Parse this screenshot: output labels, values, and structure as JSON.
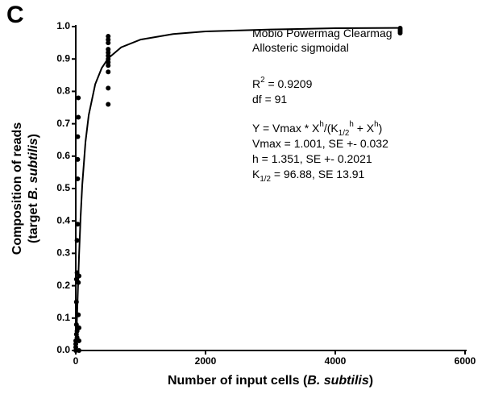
{
  "chart_data": {
    "type": "scatter",
    "panel_label": "C",
    "x_label": [
      {
        "text": "Number of input cells ("
      },
      {
        "text": "B. subtilis",
        "style": "italic"
      },
      {
        "text": ")"
      }
    ],
    "y_label": [
      [
        {
          "text": "Composition of reads"
        }
      ],
      [
        {
          "text": "(target "
        },
        {
          "text": "B. subtilis",
          "style": "italic"
        },
        {
          "text": ")"
        }
      ]
    ],
    "x": [
      0,
      0,
      0,
      0,
      10,
      10,
      10,
      10,
      20,
      20,
      20,
      20,
      30,
      30,
      30,
      30,
      40,
      40,
      40,
      40,
      50,
      50,
      50,
      50,
      500,
      500,
      500,
      500,
      500,
      500,
      500,
      500,
      500,
      500,
      500,
      500,
      5000,
      5000,
      5000,
      5000
    ],
    "values": [
      0,
      0.01,
      0.02,
      0.03,
      0.05,
      0.08,
      0.15,
      0.22,
      0.04,
      0.06,
      0.24,
      0.34,
      0.39,
      0.53,
      0.59,
      0.66,
      0.72,
      0.78,
      0.21,
      0.11,
      0.03,
      0.07,
      0.23,
      0.0,
      0.76,
      0.81,
      0.86,
      0.88,
      0.89,
      0.9,
      0.91,
      0.92,
      0.93,
      0.95,
      0.96,
      0.97,
      0.98,
      0.985,
      0.99,
      0.995
    ],
    "color": "#000000",
    "fit": {
      "x": [
        0,
        10,
        25,
        50,
        75,
        100,
        150,
        200,
        300,
        400,
        500,
        700,
        1000,
        1500,
        2000,
        3000,
        4000,
        5000
      ],
      "values": [
        0,
        0.045,
        0.138,
        0.29,
        0.414,
        0.511,
        0.644,
        0.727,
        0.822,
        0.872,
        0.902,
        0.936,
        0.96,
        0.977,
        0.985,
        0.991,
        0.995,
        0.996
      ]
    },
    "xlim": [
      0,
      6000
    ],
    "xticks": [
      0,
      2000,
      4000,
      6000
    ],
    "ylim": [
      0,
      1
    ],
    "yticks": [
      {
        "value": 0,
        "label": "0.0"
      },
      0.1,
      0.2,
      0.3,
      0.4,
      0.5,
      0.6,
      0.7,
      0.8,
      0.9,
      {
        "value": 1,
        "label": "1.0"
      }
    ],
    "annotations": [
      [
        {
          "text": "Mobio Powermag Clearmag"
        }
      ],
      [
        {
          "text": "Allosteric sigmoidal"
        }
      ],
      [
        {
          "text": "R"
        },
        {
          "text": "2",
          "style": "sup"
        },
        {
          "text": " = 0.9209"
        }
      ],
      [
        {
          "text": "df = 91"
        }
      ],
      [
        {
          "text": "Y = Vmax * X"
        },
        {
          "text": "h",
          "style": "sup"
        },
        {
          "text": "/(K"
        },
        {
          "text": "1/2",
          "style": "sub"
        },
        {
          "text": "h",
          "style": "sup"
        },
        {
          "text": " + X"
        },
        {
          "text": "h",
          "style": "sup"
        },
        {
          "text": ")"
        }
      ],
      [
        {
          "text": "Vmax = 1.001, SE +- 0.032"
        }
      ],
      [
        {
          "text": "h = 1.351, SE +- 0.2021"
        }
      ],
      [
        {
          "text": "K"
        },
        {
          "text": "1/2",
          "style": "sub"
        },
        {
          "text": " = 96.88, SE 13.91"
        }
      ]
    ]
  }
}
